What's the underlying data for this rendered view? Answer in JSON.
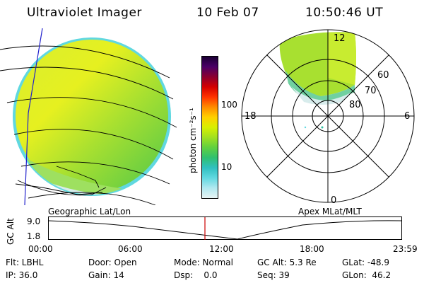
{
  "header": {
    "title": "Ultraviolet Imager",
    "date": "10 Feb 07",
    "time": "10:50:46 UT"
  },
  "geo_panel": {
    "label": "Geographic Lat/Lon"
  },
  "polar_panel": {
    "label": "Apex MLat/MLT",
    "mlt_labels": {
      "top": "12",
      "left": "18",
      "right": "6",
      "bottom": "0"
    },
    "lat_labels": [
      "60",
      "70",
      "80"
    ]
  },
  "colorbar": {
    "unit_label": "photon cm⁻²s⁻¹",
    "ticks": [
      "100",
      "10"
    ],
    "colors_top_to_bottom": [
      "#1a0033",
      "#4a0066",
      "#8b0030",
      "#d40000",
      "#ff3300",
      "#ff8c00",
      "#ffd000",
      "#d8f000",
      "#a0e020",
      "#60d040",
      "#30c070",
      "#30c0c0",
      "#60d8e0",
      "#b0e8f0",
      "#e8f4f4"
    ]
  },
  "timeline": {
    "axis_label": "GC Alt",
    "y_ticks": [
      "9.0",
      "1.8"
    ],
    "x_ticks": [
      "00:00",
      "06:00",
      "12:00",
      "18:00",
      "23:59"
    ],
    "marker_color": "#cc0000"
  },
  "info": {
    "row1": {
      "filter": "Flt: LBHL",
      "door": "Door: Open",
      "mode": "Mode: Normal",
      "gcalt": "GC Alt: 5.3 Re",
      "glat": "GLat: -48.9"
    },
    "row2": {
      "ip": "IP: 36.0",
      "gain": "Gain: 14",
      "dsp": "Dsp:    0.0",
      "seq": "Seq: 39",
      "glon": "GLon:  46.2"
    }
  }
}
